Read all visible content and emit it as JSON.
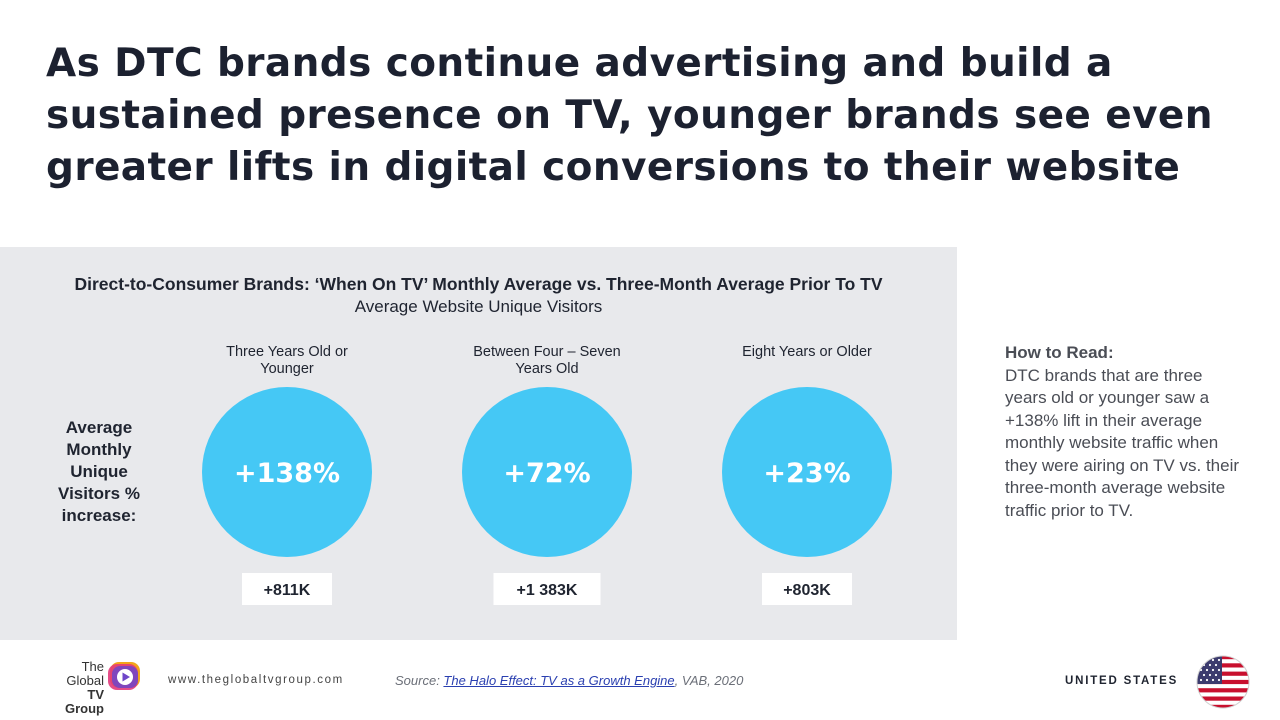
{
  "headline": "As DTC brands continue advertising and build a sustained presence on TV, younger brands see even greater lifts in digital conversions to their website",
  "chart_data": {
    "type": "bubble",
    "title": "Direct-to-Consumer Brands: ‘When On TV’ Monthly Average vs. Three-Month Average Prior To TV",
    "subtitle": "Average Website Unique Visitors",
    "ylabel_lines": [
      "Average",
      "Monthly",
      "Unique",
      "Visitors %",
      "increase:"
    ],
    "categories": [
      {
        "label_lines": [
          "Three Years Old or",
          "Younger"
        ]
      },
      {
        "label_lines": [
          "Between Four – Seven",
          "Years Old"
        ]
      },
      {
        "label_lines": [
          "Eight Years or Older"
        ]
      }
    ],
    "values_label": [
      "+138%",
      "+72%",
      "+23%"
    ],
    "values": [
      138,
      72,
      23
    ],
    "absolute_labels": [
      "+811K",
      "+1 383K",
      "+803K"
    ],
    "absolute_values_k": [
      811,
      1383,
      803
    ],
    "bubble_color": "#45c8f5"
  },
  "how_to_read": {
    "title": "How to Read:",
    "body": "DTC brands that are three years old or younger saw a +138% lift in their average monthly website traffic when they were airing on TV vs. their three-month average website traffic prior to TV."
  },
  "footer": {
    "logo_lines": [
      "The",
      "Global",
      "TV Group"
    ],
    "website": "www.theglobaltvgroup.com",
    "source_prefix": "Source: ",
    "source_link": "The Halo Effect: TV as a Growth Engine",
    "source_suffix": ", VAB, 2020",
    "country": "UNITED STATES"
  }
}
